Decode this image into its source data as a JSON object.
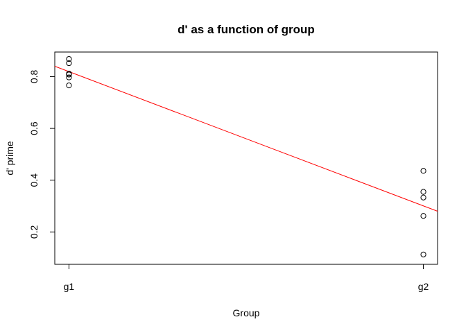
{
  "chart_data": {
    "type": "scatter",
    "title": "d' as a function of group",
    "xlabel": "Group",
    "ylabel": "d' prime",
    "x_ticks": [
      "g1",
      "g2"
    ],
    "x_tick_values": [
      1,
      2
    ],
    "y_ticks": [
      "0.2",
      "0.4",
      "0.6",
      "0.8"
    ],
    "y_tick_values": [
      0.2,
      0.4,
      0.6,
      0.8
    ],
    "xlim": [
      0.96,
      2.04
    ],
    "ylim": [
      0.075,
      0.895
    ],
    "grid": false,
    "points": [
      {
        "x": 1,
        "y": 0.868
      },
      {
        "x": 1,
        "y": 0.852
      },
      {
        "x": 1,
        "y": 0.812
      },
      {
        "x": 1,
        "y": 0.808
      },
      {
        "x": 1,
        "y": 0.797
      },
      {
        "x": 1,
        "y": 0.766
      },
      {
        "x": 2,
        "y": 0.436
      },
      {
        "x": 2,
        "y": 0.355
      },
      {
        "x": 2,
        "y": 0.333
      },
      {
        "x": 2,
        "y": 0.262
      },
      {
        "x": 2,
        "y": 0.113
      }
    ],
    "fit_line": {
      "color": "#ff0000",
      "x": [
        0.96,
        2.04
      ],
      "y": [
        0.84,
        0.28
      ]
    },
    "point_color": "#000000"
  }
}
